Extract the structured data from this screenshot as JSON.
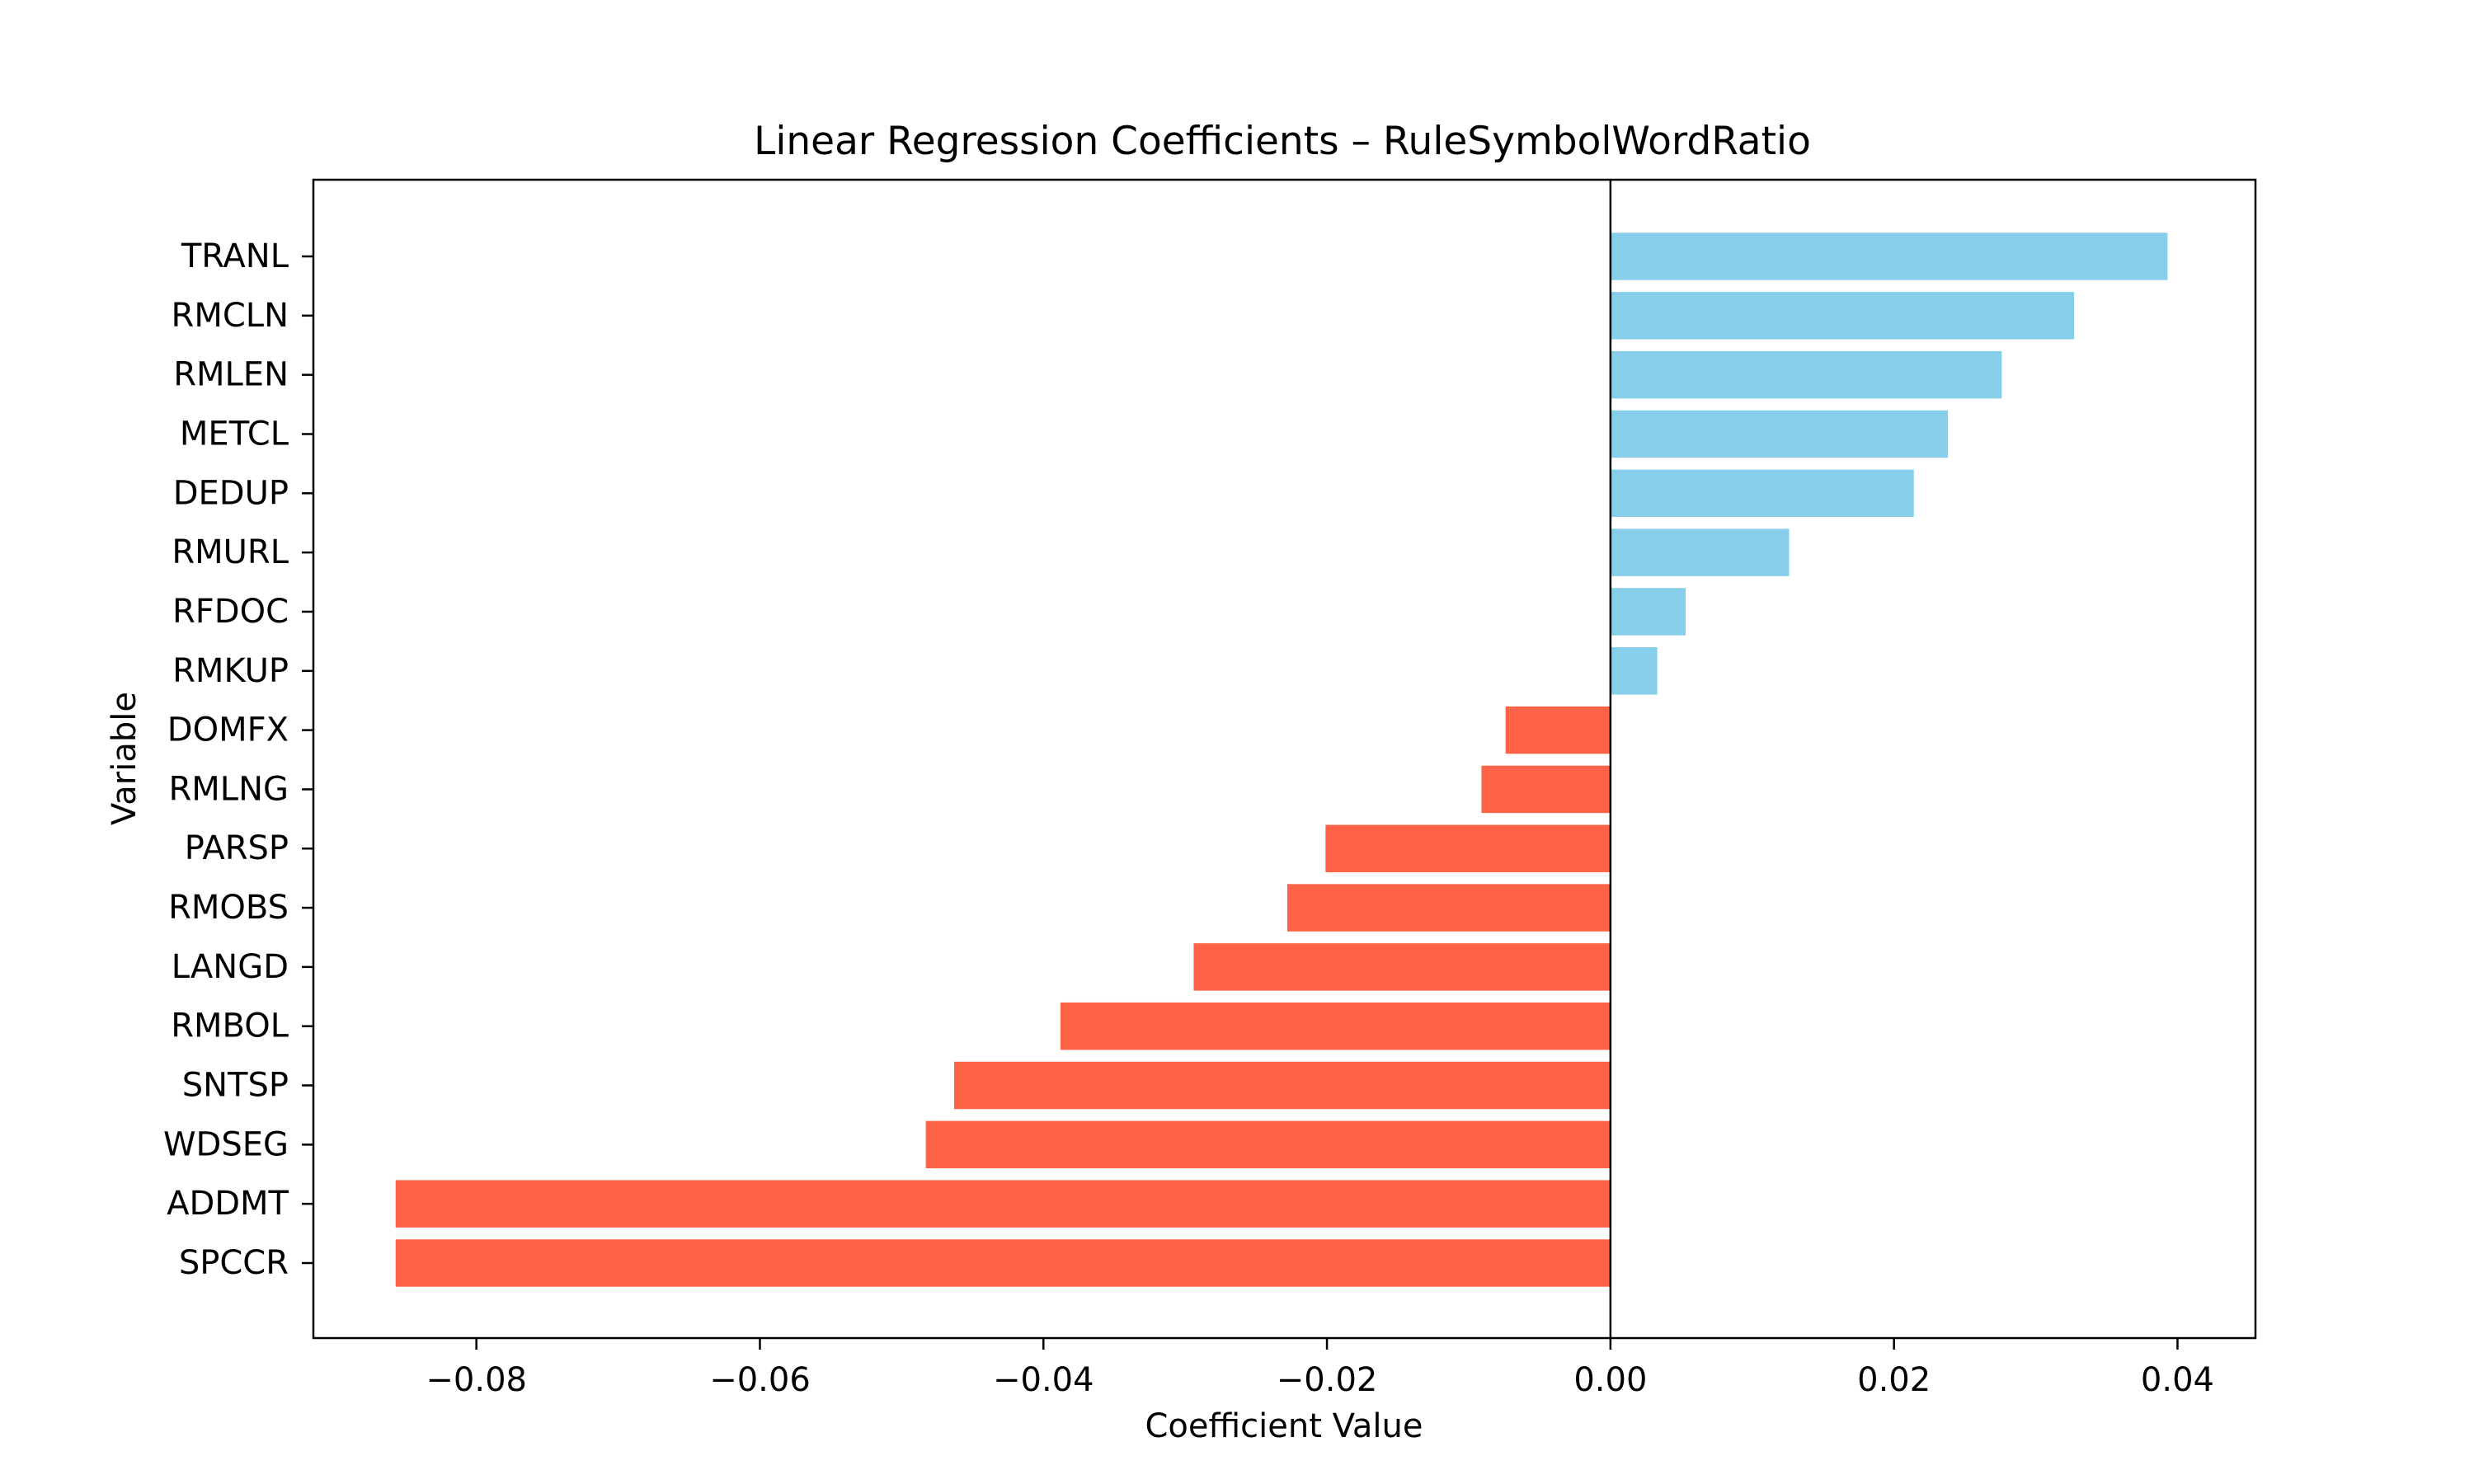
{
  "chart_data": {
    "type": "bar",
    "orientation": "horizontal",
    "title": "Linear Regression Coefficients – RuleSymbolWordRatio",
    "xlabel": "Coefficient Value",
    "ylabel": "Variable",
    "xlim": [
      -0.0915,
      0.0455
    ],
    "xticks": [
      -0.08,
      -0.06,
      -0.04,
      -0.02,
      0.0,
      0.02,
      0.04
    ],
    "xtick_labels": [
      "−0.08",
      "−0.06",
      "−0.04",
      "−0.02",
      "0.00",
      "0.02",
      "0.04"
    ],
    "grid": false,
    "legend": "none",
    "zero_line": true,
    "colors": {
      "positive": "#87CEEB",
      "negative": "#FF6347",
      "axis": "#000000"
    },
    "categories": [
      "TRANL",
      "RMCLN",
      "RMLEN",
      "METCL",
      "DEDUP",
      "RMURL",
      "RFDOC",
      "RMKUP",
      "DOMFX",
      "RMLNG",
      "PARSP",
      "RMOBS",
      "LANGD",
      "RMBOL",
      "SNTSP",
      "WDSEG",
      "ADDMT",
      "SPCCR"
    ],
    "values": [
      0.0393,
      0.0327,
      0.0276,
      0.0238,
      0.0214,
      0.0126,
      0.0053,
      0.0033,
      -0.0074,
      -0.0091,
      -0.0201,
      -0.0228,
      -0.0294,
      -0.0388,
      -0.0463,
      -0.0483,
      -0.0857,
      -0.0857
    ]
  }
}
